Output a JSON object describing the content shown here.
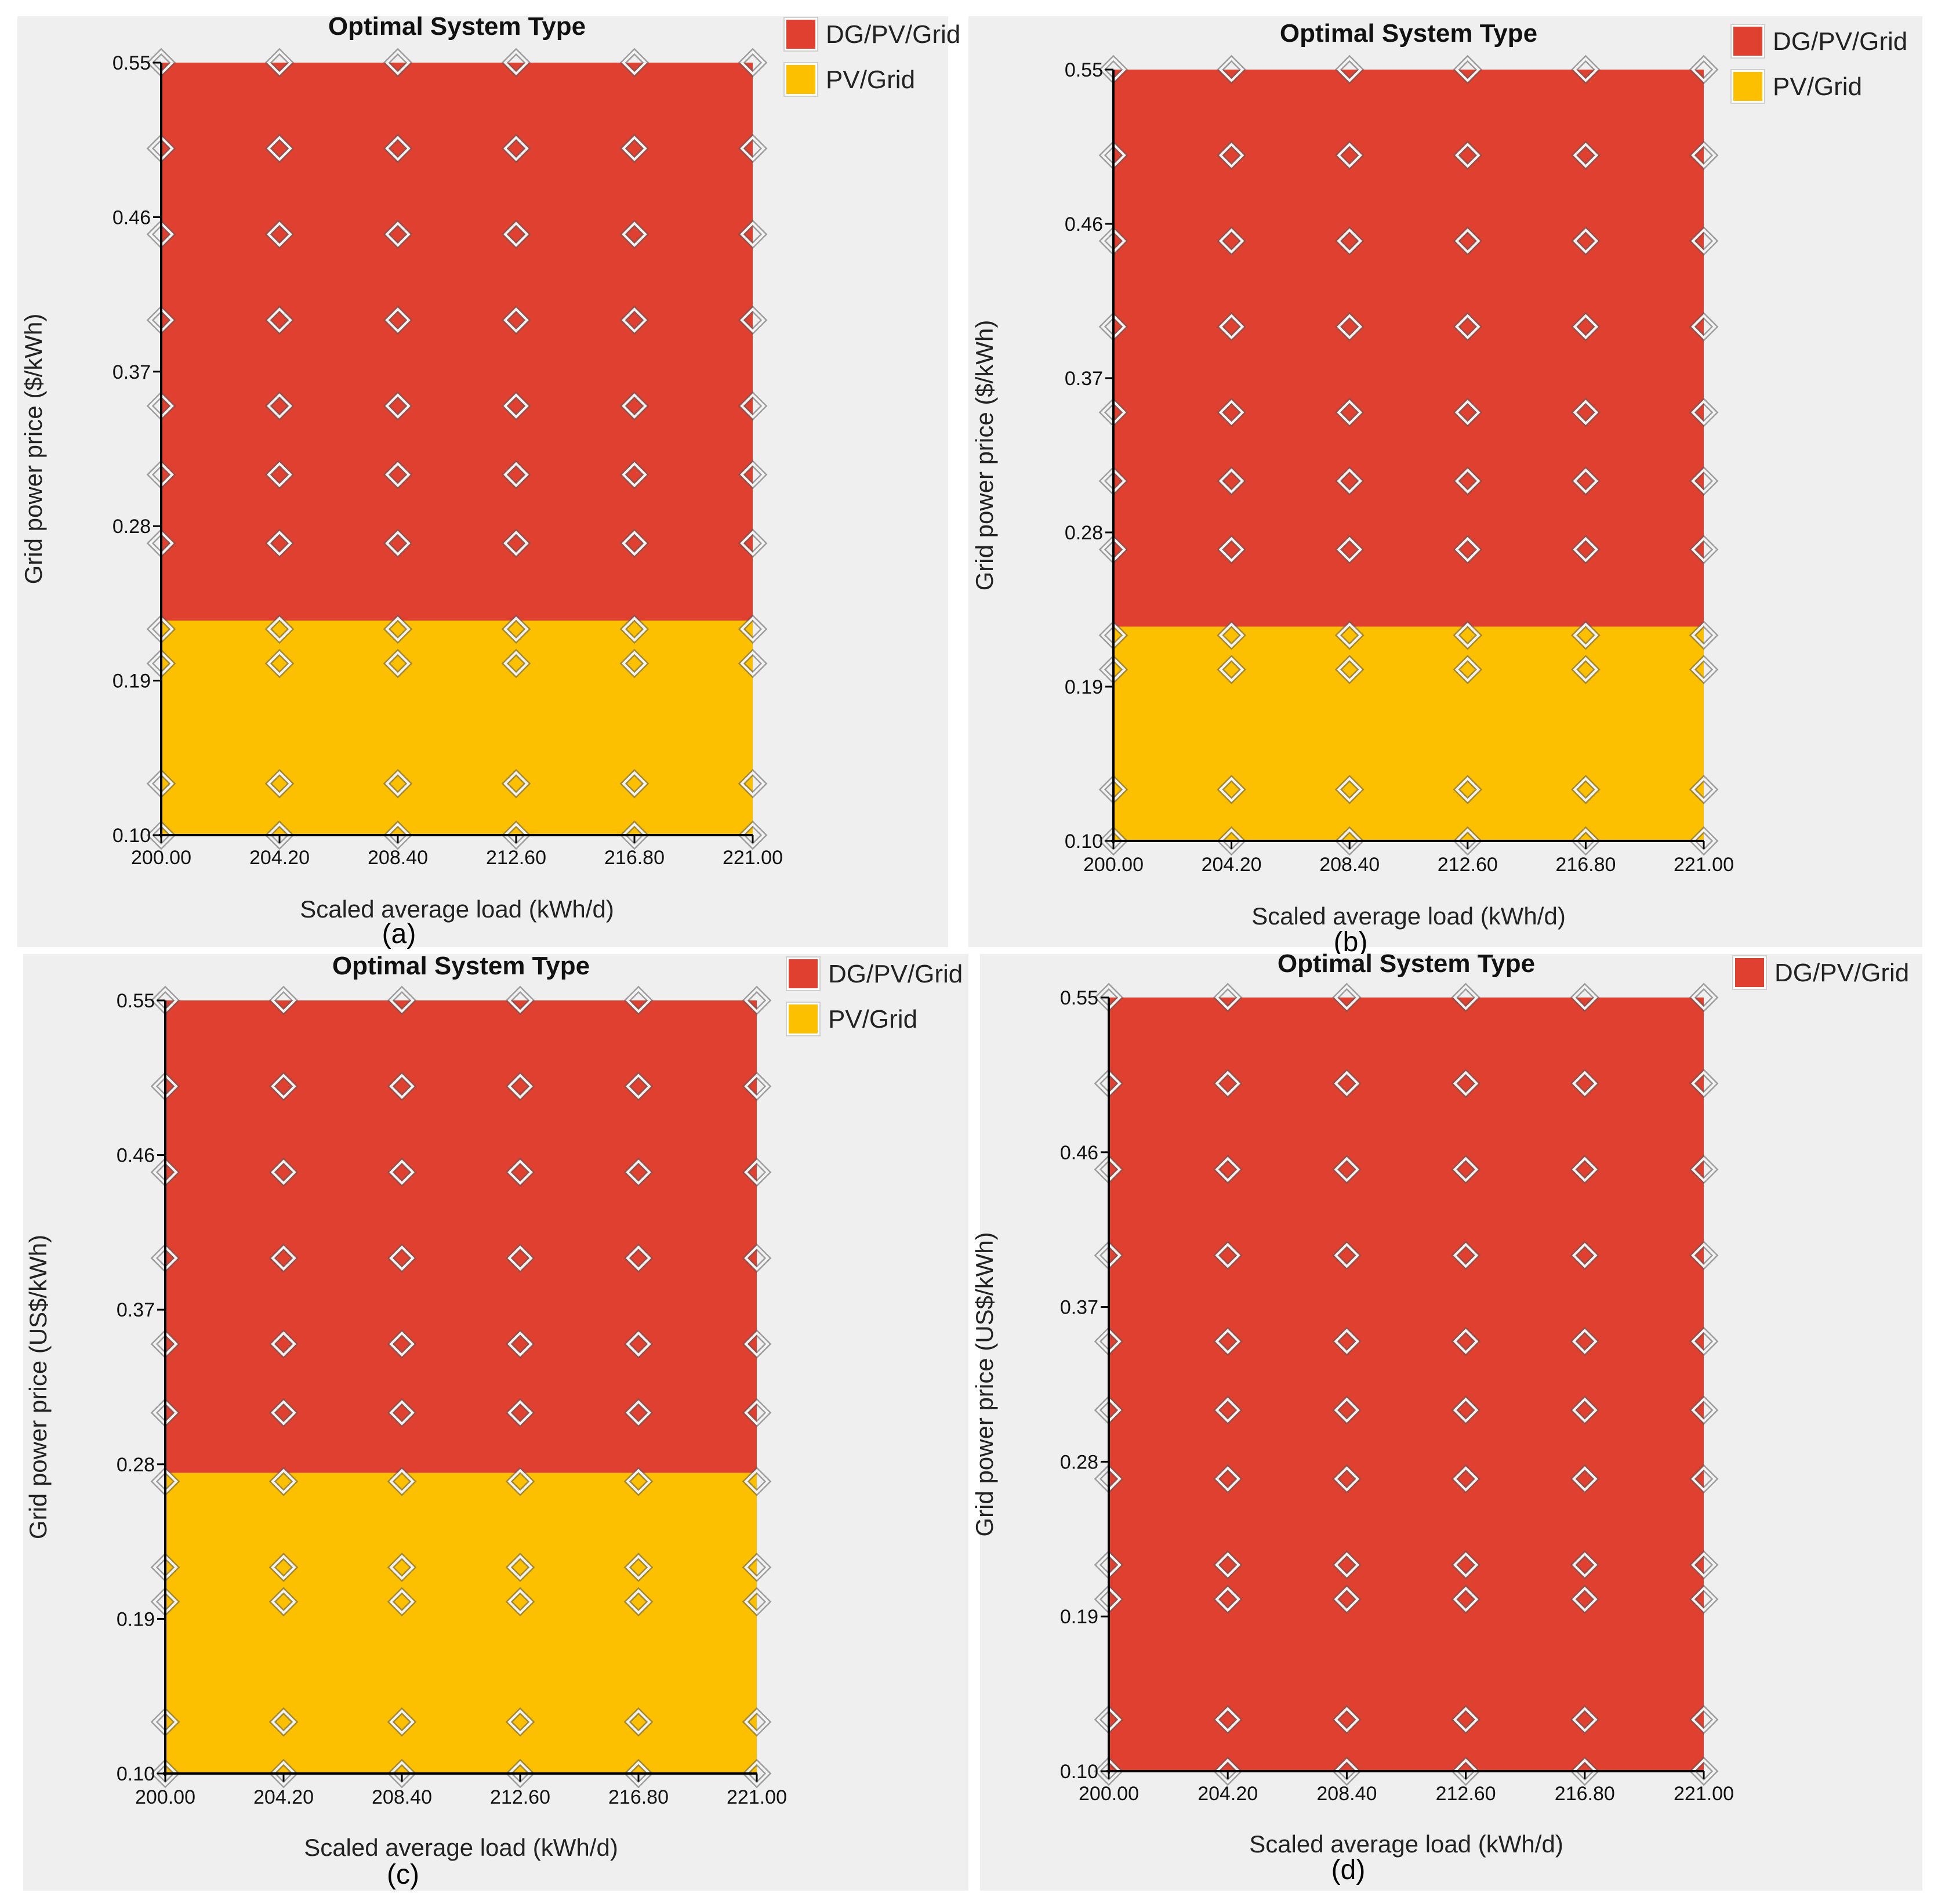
{
  "colors": {
    "background": "#efefef",
    "dg_pv_grid": "#e0402f",
    "pv_grid": "#fdc000",
    "axis": "#000000",
    "marker_fill": "#f3f3f3",
    "marker_stroke": "#7a7a7a"
  },
  "chart_data": [
    {
      "id": "a",
      "type": "heatmap",
      "panel_label": "(a)",
      "title": "Optimal System Type",
      "xlabel": "Scaled average load (kWh/d)",
      "ylabel": "Grid power price ($/kWh)",
      "xlim": [
        200,
        221
      ],
      "ylim": [
        0.1,
        0.55
      ],
      "x_ticks": [
        "200.00",
        "204.20",
        "208.40",
        "212.60",
        "216.80",
        "221.00"
      ],
      "y_ticks": [
        "0.10",
        "0.19",
        "0.28",
        "0.37",
        "0.46",
        "0.55"
      ],
      "legend": [
        "DG/PV/Grid",
        "PV/Grid"
      ],
      "regions": [
        {
          "system": "DG/PV/Grid",
          "y_from": 0.225,
          "y_to": 0.55
        },
        {
          "system": "PV/Grid",
          "y_from": 0.1,
          "y_to": 0.225
        }
      ],
      "sensitivity_x": [
        200.0,
        204.2,
        208.4,
        212.6,
        216.8,
        221.0
      ],
      "sensitivity_y": [
        0.1,
        0.13,
        0.2,
        0.22,
        0.27,
        0.31,
        0.35,
        0.4,
        0.45,
        0.5,
        0.55
      ]
    },
    {
      "id": "b",
      "type": "heatmap",
      "panel_label": "(b)",
      "title": "Optimal System Type",
      "xlabel": "Scaled average load (kWh/d)",
      "ylabel": "Grid power price ($/kWh)",
      "xlim": [
        200,
        221
      ],
      "ylim": [
        0.1,
        0.55
      ],
      "x_ticks": [
        "200.00",
        "204.20",
        "208.40",
        "212.60",
        "216.80",
        "221.00"
      ],
      "y_ticks": [
        "0.10",
        "0.19",
        "0.28",
        "0.37",
        "0.46",
        "0.55"
      ],
      "legend": [
        "DG/PV/Grid",
        "PV/Grid"
      ],
      "regions": [
        {
          "system": "DG/PV/Grid",
          "y_from": 0.225,
          "y_to": 0.55
        },
        {
          "system": "PV/Grid",
          "y_from": 0.1,
          "y_to": 0.225
        }
      ],
      "sensitivity_x": [
        200.0,
        204.2,
        208.4,
        212.6,
        216.8,
        221.0
      ],
      "sensitivity_y": [
        0.1,
        0.13,
        0.2,
        0.22,
        0.27,
        0.31,
        0.35,
        0.4,
        0.45,
        0.5,
        0.55
      ]
    },
    {
      "id": "c",
      "type": "heatmap",
      "panel_label": "(c)",
      "title": "Optimal System Type",
      "xlabel": "Scaled average load (kWh/d)",
      "ylabel": "Grid power price (US$/kWh)",
      "xlim": [
        200,
        221
      ],
      "ylim": [
        0.1,
        0.55
      ],
      "x_ticks": [
        "200.00",
        "204.20",
        "208.40",
        "212.60",
        "216.80",
        "221.00"
      ],
      "y_ticks": [
        "0.10",
        "0.19",
        "0.28",
        "0.37",
        "0.46",
        "0.55"
      ],
      "legend": [
        "DG/PV/Grid",
        "PV/Grid"
      ],
      "regions": [
        {
          "system": "DG/PV/Grid",
          "y_from": 0.275,
          "y_to": 0.55
        },
        {
          "system": "PV/Grid",
          "y_from": 0.1,
          "y_to": 0.275
        }
      ],
      "sensitivity_x": [
        200.0,
        204.2,
        208.4,
        212.6,
        216.8,
        221.0
      ],
      "sensitivity_y": [
        0.1,
        0.13,
        0.2,
        0.22,
        0.27,
        0.31,
        0.35,
        0.4,
        0.45,
        0.5,
        0.55
      ]
    },
    {
      "id": "d",
      "type": "heatmap",
      "panel_label": "(d)",
      "title": "Optimal System Type",
      "xlabel": "Scaled average load (kWh/d)",
      "ylabel": "Grid power price (US$/kWh)",
      "xlim": [
        200,
        221
      ],
      "ylim": [
        0.1,
        0.55
      ],
      "x_ticks": [
        "200.00",
        "204.20",
        "208.40",
        "212.60",
        "216.80",
        "221.00"
      ],
      "y_ticks": [
        "0.10",
        "0.19",
        "0.28",
        "0.37",
        "0.46",
        "0.55"
      ],
      "legend": [
        "DG/PV/Grid"
      ],
      "regions": [
        {
          "system": "DG/PV/Grid",
          "y_from": 0.1,
          "y_to": 0.55
        }
      ],
      "sensitivity_x": [
        200.0,
        204.2,
        208.4,
        212.6,
        216.8,
        221.0
      ],
      "sensitivity_y": [
        0.1,
        0.13,
        0.2,
        0.22,
        0.27,
        0.31,
        0.35,
        0.4,
        0.45,
        0.5,
        0.55
      ]
    }
  ]
}
